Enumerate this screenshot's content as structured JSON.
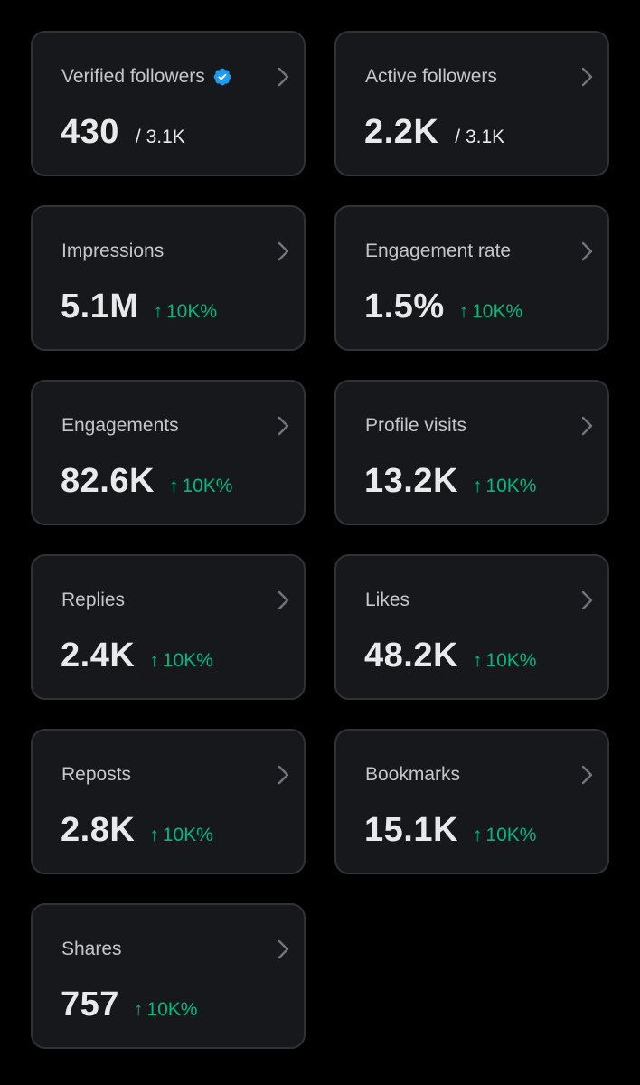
{
  "colors": {
    "background": "#000000",
    "card_background": "#16181c",
    "card_border": "#2f3336",
    "label": "#c4c7ca",
    "value": "#e7e9ea",
    "positive": "#00ba7c",
    "verified": "#1d9bf0"
  },
  "cards": [
    {
      "label": "Verified followers",
      "value": "430",
      "total": "/ 3.1K",
      "icon": "verified-badge-icon"
    },
    {
      "label": "Active followers",
      "value": "2.2K",
      "total": "/ 3.1K"
    },
    {
      "label": "Impressions",
      "value": "5.1M",
      "change_arrow": "↑",
      "change": "10K%"
    },
    {
      "label": "Engagement rate",
      "value": "1.5%",
      "change_arrow": "↑",
      "change": "10K%"
    },
    {
      "label": "Engagements",
      "value": "82.6K",
      "change_arrow": "↑",
      "change": "10K%"
    },
    {
      "label": "Profile visits",
      "value": "13.2K",
      "change_arrow": "↑",
      "change": "10K%"
    },
    {
      "label": "Replies",
      "value": "2.4K",
      "change_arrow": "↑",
      "change": "10K%"
    },
    {
      "label": "Likes",
      "value": "48.2K",
      "change_arrow": "↑",
      "change": "10K%"
    },
    {
      "label": "Reposts",
      "value": "2.8K",
      "change_arrow": "↑",
      "change": "10K%"
    },
    {
      "label": "Bookmarks",
      "value": "15.1K",
      "change_arrow": "↑",
      "change": "10K%"
    },
    {
      "label": "Shares",
      "value": "757",
      "change_arrow": "↑",
      "change": "10K%"
    }
  ]
}
